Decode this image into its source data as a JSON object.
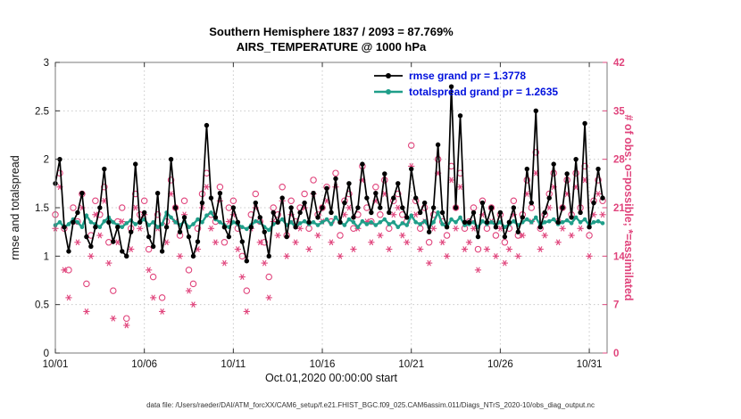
{
  "title": {
    "line1": "Southern Hemisphere 1837 / 2093 = 87.769%",
    "line2": "AIRS_TEMPERATURE @ 1000 hPa"
  },
  "legend": {
    "items": [
      {
        "label": "rmse grand pr = 1.3778",
        "color": "#000000"
      },
      {
        "label": "totalspread grand pr = 1.2635",
        "color": "#1f9e89"
      }
    ]
  },
  "footer": "data file: /Users/raeder/DAI/ATM_forcXX/CAM6_setup/f.e21.FHIST_BGC.f09_025.CAM6assim.011/Diags_NTrS_2020-10/obs_diag_output.nc",
  "chart_data": {
    "type": "line",
    "title": "Southern Hemisphere 1837 / 2093 = 87.769% — AIRS_TEMPERATURE @ 1000 hPa",
    "xlabel": "Oct.01,2020 00:00:00 start",
    "ylabel_left": "rmse and totalspread",
    "ylabel_right": "# of obs: o=possible; *=assimilated",
    "xlim": [
      0,
      31
    ],
    "ylim_left": [
      0,
      3
    ],
    "ylim_right": [
      0,
      42
    ],
    "x_step_days": 0.25,
    "grid": true,
    "legend_position": "top-center-inside",
    "x_ticks": {
      "values": [
        0,
        5,
        10,
        15,
        20,
        25,
        30
      ],
      "labels": [
        "10/01",
        "10/06",
        "10/11",
        "10/16",
        "10/21",
        "10/26",
        "10/31"
      ]
    },
    "left_ticks": {
      "values": [
        0,
        0.5,
        1,
        1.5,
        2,
        2.5,
        3
      ],
      "labels": [
        "0",
        "0.5",
        "1",
        "1.5",
        "2",
        "2.5",
        "3"
      ]
    },
    "right_ticks": {
      "values": [
        0,
        7,
        14,
        21,
        28,
        35,
        42
      ],
      "labels": [
        "0",
        "7",
        "14",
        "21",
        "28",
        "35",
        "42"
      ]
    },
    "colors": {
      "rmse": "#000000",
      "totalspread": "#1f9e89",
      "obs": "#e0447c",
      "legend_text": "#0010dd",
      "grid": "#c9c9c9"
    },
    "grand": {
      "rmse": 1.3778,
      "totalspread": 1.2635
    },
    "stats": {
      "assimilated": 1837,
      "possible": 2093,
      "percent": 87.769
    },
    "series": [
      {
        "name": "rmse",
        "axis": "left",
        "style": "line+marker",
        "values": [
          1.75,
          2.0,
          1.3,
          1.05,
          1.35,
          1.45,
          1.65,
          1.2,
          1.1,
          1.3,
          1.5,
          1.9,
          1.35,
          1.15,
          1.3,
          1.05,
          1.0,
          1.25,
          1.95,
          1.35,
          1.45,
          1.2,
          1.1,
          1.65,
          1.05,
          1.3,
          2.0,
          1.5,
          1.25,
          1.4,
          1.2,
          1.0,
          1.15,
          1.55,
          2.35,
          1.6,
          1.4,
          1.65,
          1.3,
          1.2,
          1.5,
          1.35,
          1.15,
          0.95,
          1.3,
          1.55,
          1.4,
          1.25,
          1.0,
          1.45,
          1.35,
          1.6,
          1.2,
          1.5,
          1.3,
          1.45,
          1.55,
          1.35,
          1.65,
          1.4,
          1.5,
          1.7,
          1.45,
          1.8,
          1.35,
          1.55,
          1.75,
          1.4,
          1.5,
          1.95,
          1.6,
          1.45,
          1.65,
          1.5,
          1.85,
          1.45,
          1.6,
          1.75,
          1.5,
          1.4,
          1.9,
          1.6,
          1.45,
          1.55,
          1.25,
          1.5,
          2.15,
          1.45,
          1.3,
          2.75,
          1.5,
          2.45,
          1.35,
          1.35,
          1.45,
          1.2,
          1.55,
          1.35,
          1.5,
          1.3,
          1.45,
          1.2,
          1.35,
          1.5,
          1.25,
          1.4,
          1.9,
          1.55,
          2.5,
          1.3,
          1.45,
          1.6,
          1.95,
          1.35,
          1.5,
          1.85,
          1.4,
          2.0,
          1.45,
          2.37,
          1.3,
          1.55,
          1.9,
          1.6
        ]
      },
      {
        "name": "totalspread",
        "axis": "left",
        "style": "line+marker",
        "values": [
          1.32,
          1.35,
          1.3,
          1.33,
          1.38,
          1.35,
          1.3,
          1.42,
          1.35,
          1.33,
          1.3,
          1.36,
          1.4,
          1.35,
          1.32,
          1.3,
          1.34,
          1.37,
          1.33,
          1.35,
          1.38,
          1.32,
          1.35,
          1.3,
          1.33,
          1.45,
          1.4,
          1.35,
          1.32,
          1.36,
          1.3,
          1.33,
          1.38,
          1.35,
          1.42,
          1.45,
          1.38,
          1.35,
          1.32,
          1.3,
          1.35,
          1.33,
          1.3,
          1.28,
          1.32,
          1.36,
          1.35,
          1.3,
          1.27,
          1.33,
          1.35,
          1.38,
          1.32,
          1.35,
          1.3,
          1.34,
          1.36,
          1.33,
          1.35,
          1.32,
          1.35,
          1.38,
          1.33,
          1.4,
          1.35,
          1.32,
          1.38,
          1.35,
          1.3,
          1.36,
          1.33,
          1.35,
          1.32,
          1.35,
          1.38,
          1.33,
          1.35,
          1.3,
          1.34,
          1.32,
          1.42,
          1.35,
          1.33,
          1.36,
          1.3,
          1.35,
          1.45,
          1.33,
          1.3,
          1.38,
          1.35,
          1.4,
          1.32,
          1.33,
          1.35,
          1.3,
          1.36,
          1.33,
          1.35,
          1.32,
          1.35,
          1.3,
          1.33,
          1.36,
          1.32,
          1.35,
          1.38,
          1.35,
          1.4,
          1.32,
          1.35,
          1.36,
          1.38,
          1.33,
          1.35,
          1.37,
          1.34,
          1.4,
          1.35,
          1.38,
          1.32,
          1.35,
          1.36,
          1.34
        ]
      },
      {
        "name": "possible_obs",
        "axis": "right",
        "style": "circle",
        "values": [
          20,
          26,
          18,
          12,
          21,
          19,
          23,
          10,
          17,
          22,
          20,
          24,
          16,
          9,
          19,
          21,
          5,
          18,
          23,
          20,
          22,
          15,
          11,
          20,
          8,
          19,
          25,
          21,
          17,
          22,
          12,
          10,
          18,
          23,
          26,
          20,
          19,
          24,
          16,
          21,
          22,
          18,
          14,
          9,
          20,
          23,
          19,
          16,
          11,
          21,
          20,
          24,
          17,
          22,
          19,
          21,
          23,
          18,
          25,
          20,
          21,
          24,
          19,
          26,
          17,
          22,
          23,
          18,
          20,
          27,
          21,
          19,
          24,
          20,
          25,
          18,
          22,
          23,
          20,
          19,
          30,
          22,
          18,
          21,
          16,
          20,
          28,
          19,
          17,
          27,
          21,
          26,
          18,
          19,
          21,
          15,
          22,
          18,
          21,
          17,
          20,
          16,
          18,
          22,
          17,
          20,
          25,
          21,
          29,
          18,
          20,
          23,
          26,
          19,
          21,
          25,
          20,
          26,
          21,
          27,
          17,
          22,
          25,
          22
        ]
      },
      {
        "name": "assimilated_obs",
        "axis": "right",
        "style": "asterisk",
        "values": [
          18,
          24,
          12,
          8,
          19,
          16,
          21,
          6,
          14,
          20,
          17,
          22,
          13,
          5,
          16,
          19,
          4,
          15,
          21,
          18,
          20,
          12,
          8,
          18,
          6,
          16,
          23,
          19,
          14,
          20,
          9,
          7,
          15,
          21,
          24,
          18,
          16,
          22,
          13,
          19,
          20,
          15,
          11,
          6,
          18,
          21,
          16,
          13,
          8,
          19,
          17,
          22,
          14,
          20,
          16,
          18,
          21,
          15,
          23,
          17,
          19,
          22,
          16,
          24,
          14,
          20,
          21,
          15,
          18,
          25,
          19,
          16,
          22,
          17,
          23,
          15,
          20,
          21,
          17,
          16,
          27,
          20,
          15,
          19,
          13,
          18,
          26,
          16,
          14,
          25,
          18,
          24,
          15,
          16,
          18,
          12,
          20,
          15,
          19,
          14,
          18,
          13,
          15,
          20,
          14,
          17,
          23,
          19,
          26,
          15,
          17,
          21,
          24,
          16,
          18,
          23,
          17,
          24,
          18,
          25,
          14,
          20,
          23,
          20
        ]
      }
    ]
  }
}
